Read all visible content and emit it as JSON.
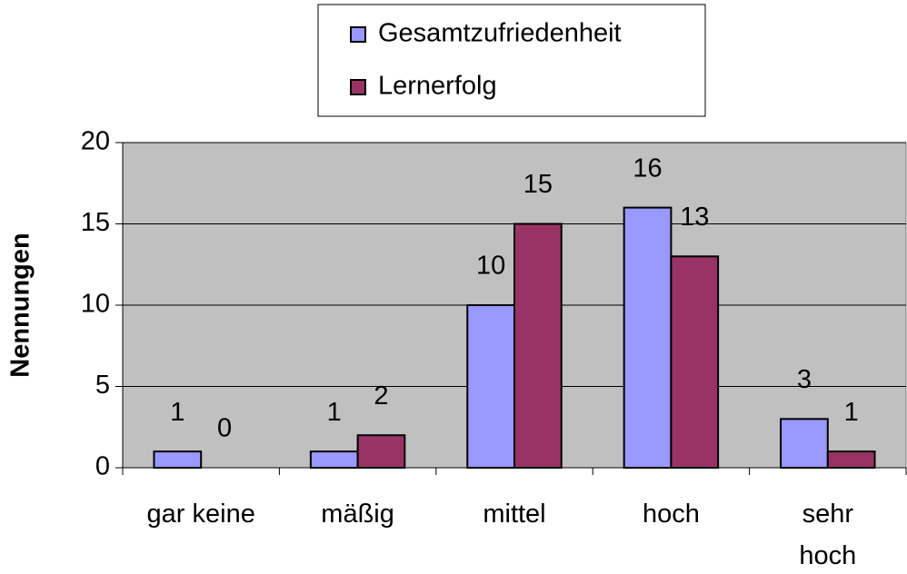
{
  "chart_data": {
    "type": "bar",
    "y_label": "Nennungen",
    "categories": [
      "gar keine",
      "mäßig",
      "mittel",
      "hoch",
      "sehr hoch"
    ],
    "series": [
      {
        "name": "Gesamtzufriedenheit",
        "color": "#9999ff",
        "values": [
          1,
          1,
          10,
          16,
          3
        ]
      },
      {
        "name": "Lernerfolg",
        "color": "#993366",
        "values": [
          0,
          2,
          15,
          13,
          1
        ]
      }
    ],
    "ylim": [
      0,
      20
    ],
    "yticks": [
      0,
      5,
      10,
      15,
      20
    ],
    "plot_background": "#c0c0c0"
  }
}
